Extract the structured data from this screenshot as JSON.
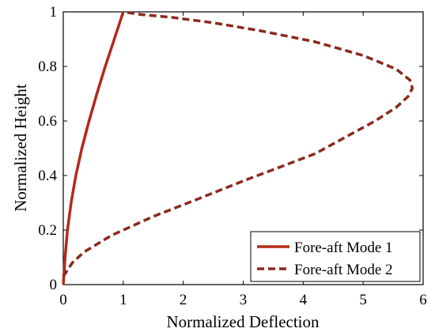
{
  "chart_data": {
    "type": "line",
    "title": "",
    "xlabel": "Normalized Deflection",
    "ylabel": "Normalized Height",
    "xlim": [
      0,
      6
    ],
    "ylim": [
      0,
      1
    ],
    "xticks": [
      "0",
      "1",
      "2",
      "3",
      "4",
      "5",
      "6"
    ],
    "yticks": [
      "0",
      "0.2",
      "0.4",
      "0.6",
      "0.8",
      "1"
    ],
    "grid": false,
    "legend_position": "bottom-right",
    "series": [
      {
        "name": "Fore-aft Mode 1",
        "color": "#b22a17",
        "style": "solid",
        "points": [
          [
            0,
            0
          ],
          [
            0.03,
            0.1
          ],
          [
            0.07,
            0.2
          ],
          [
            0.13,
            0.3
          ],
          [
            0.21,
            0.4
          ],
          [
            0.31,
            0.5
          ],
          [
            0.43,
            0.6
          ],
          [
            0.56,
            0.7
          ],
          [
            0.7,
            0.8
          ],
          [
            0.85,
            0.9
          ],
          [
            1.0,
            1.0
          ]
        ]
      },
      {
        "name": "Fore-aft Mode 2",
        "color": "#8b2a1d",
        "style": "dashed",
        "points": [
          [
            0,
            0.03
          ],
          [
            0.15,
            0.08
          ],
          [
            0.35,
            0.12
          ],
          [
            0.8,
            0.18
          ],
          [
            1.5,
            0.25
          ],
          [
            2.2,
            0.31
          ],
          [
            3.0,
            0.38
          ],
          [
            3.6,
            0.43
          ],
          [
            4.2,
            0.48
          ],
          [
            4.7,
            0.54
          ],
          [
            5.2,
            0.6
          ],
          [
            5.55,
            0.65
          ],
          [
            5.75,
            0.69
          ],
          [
            5.82,
            0.72
          ],
          [
            5.78,
            0.75
          ],
          [
            5.55,
            0.79
          ],
          [
            5.0,
            0.84
          ],
          [
            4.2,
            0.89
          ],
          [
            3.3,
            0.93
          ],
          [
            2.5,
            0.96
          ],
          [
            1.8,
            0.98
          ],
          [
            1.3,
            0.99
          ],
          [
            1.0,
            1.0
          ]
        ]
      }
    ]
  }
}
